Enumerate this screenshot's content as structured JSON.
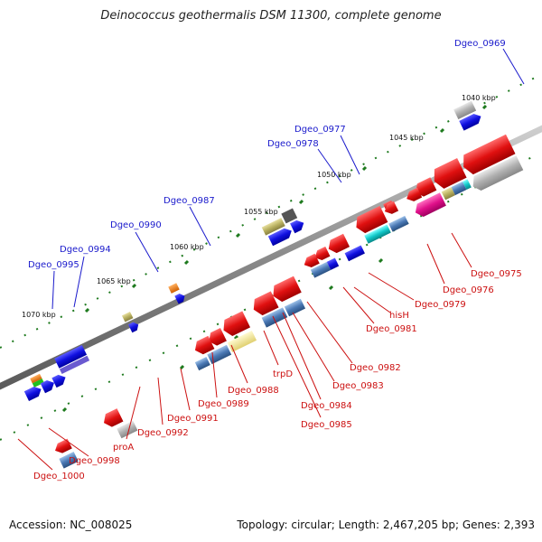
{
  "title": "Deinococcus geothermalis DSM 11300, complete genome",
  "accession": "Accession: NC_008025",
  "topology": "Topology: circular; Length: 2,467,205 bp; Genes: 2,393",
  "colors": {
    "backbone": "#8a8a8a",
    "tick": "#1e7a1e",
    "gene_red": "#e01010",
    "gene_blue": "#1010e0",
    "gene_steel": "#4a78b4",
    "gene_khaki": "#c8c070",
    "gene_gray": "#b8b8b8",
    "label_blue": "#1a1acc",
    "label_red": "#cc1010"
  },
  "scale_labels": [
    "1040 kbp",
    "1045 kbp",
    "1050 kbp",
    "1055 kbp",
    "1060 kbp",
    "1065 kbp",
    "1070 kbp"
  ],
  "labels_top": [
    "Dgeo_0969",
    "Dgeo_0977",
    "Dgeo_0978",
    "Dgeo_0987",
    "Dgeo_0990",
    "Dgeo_0994",
    "Dgeo_0995"
  ],
  "labels_bottom": [
    "Dgeo_0975",
    "Dgeo_0976",
    "Dgeo_0979",
    "hisH",
    "Dgeo_0981",
    "Dgeo_0982",
    "Dgeo_0983",
    "trpD",
    "Dgeo_0984",
    "Dgeo_0985",
    "Dgeo_0988",
    "Dgeo_0989",
    "Dgeo_0991",
    "Dgeo_0992",
    "proA",
    "Dgeo_0998",
    "Dgeo_1000"
  ]
}
